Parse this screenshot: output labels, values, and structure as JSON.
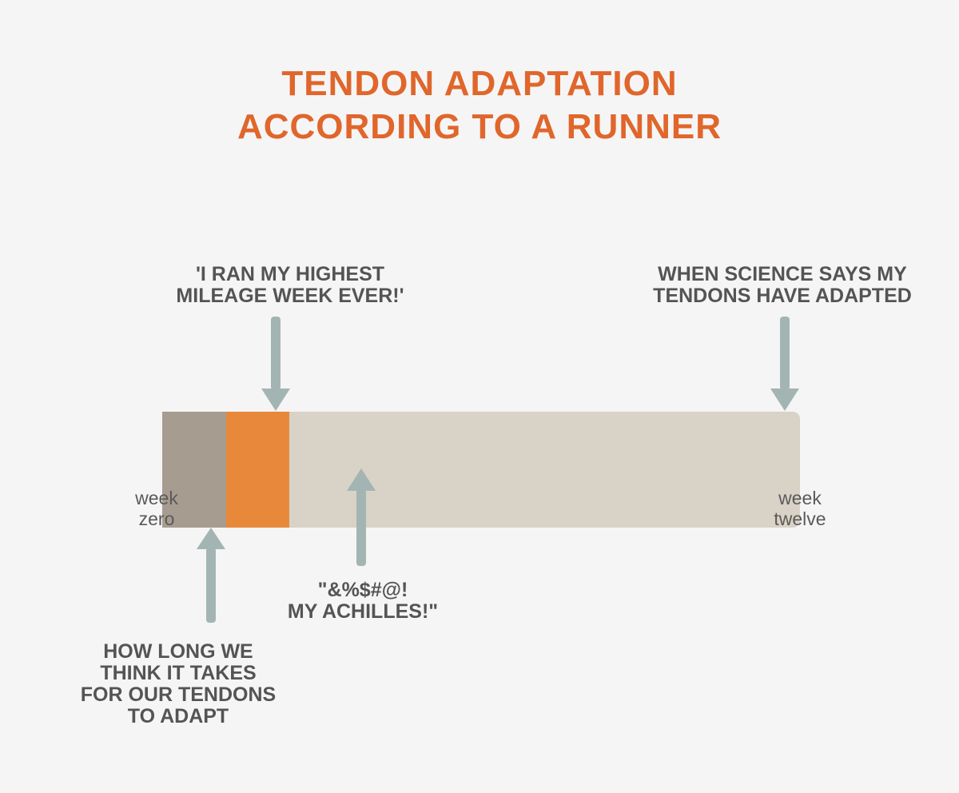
{
  "title": {
    "line1": "TENDON ADAPTATION",
    "line2": "ACCORDING TO A RUNNER"
  },
  "annotations": {
    "highest_mileage": {
      "line1": "'I RAN MY HIGHEST",
      "line2": "MILEAGE WEEK EVER!'"
    },
    "science": {
      "line1": "WHEN SCIENCE SAYS MY",
      "line2": "TENDONS HAVE ADAPTED"
    },
    "achilles": {
      "line1": "\"&%$#@!",
      "line2": "MY ACHILLES!\""
    },
    "how_long": {
      "line1": "HOW LONG WE",
      "line2": "THINK IT TAKES",
      "line3": "FOR OUR TENDONS",
      "line4": "TO ADAPT"
    }
  },
  "timeline": {
    "start": {
      "line1": "week",
      "line2": "zero"
    },
    "end": {
      "line1": "week",
      "line2": "twelve"
    },
    "colors": {
      "bar": "#d9d2c6",
      "perceived_adaptation": "#a69c90",
      "injury_zone": "#e8883a",
      "arrow": "#a3b5b2",
      "title": "#e0662b"
    }
  }
}
